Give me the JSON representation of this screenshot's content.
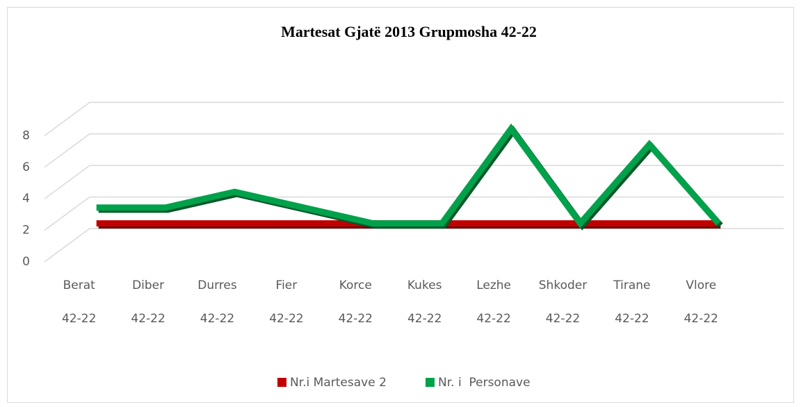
{
  "chart_data": {
    "type": "line3d",
    "title": "Martesat Gjatë 2013 Grupmosha 42-22",
    "categories": [
      "Berat",
      "Diber",
      "Durres",
      "Fier",
      "Korce",
      "Kukes",
      "Lezhe",
      "Shkoder",
      "Tirane",
      "Vlore"
    ],
    "subcategories": [
      "42-22",
      "42-22",
      "42-22",
      "42-22",
      "42-22",
      "42-22",
      "42-22",
      "42-22",
      "42-22",
      "42-22"
    ],
    "series": [
      {
        "name": "Nr.i Martesave 2",
        "color": "#c00000",
        "values": [
          2,
          2,
          2,
          2,
          2,
          2,
          2,
          2,
          2,
          2
        ]
      },
      {
        "name": "Nr. i  Personave",
        "color": "#00a14b",
        "values": [
          3,
          3,
          4,
          3,
          2,
          2,
          8,
          2,
          7,
          2
        ]
      }
    ],
    "ylim": [
      0,
      10
    ],
    "yticks": [
      0,
      2,
      4,
      6,
      8
    ],
    "grid": true
  }
}
